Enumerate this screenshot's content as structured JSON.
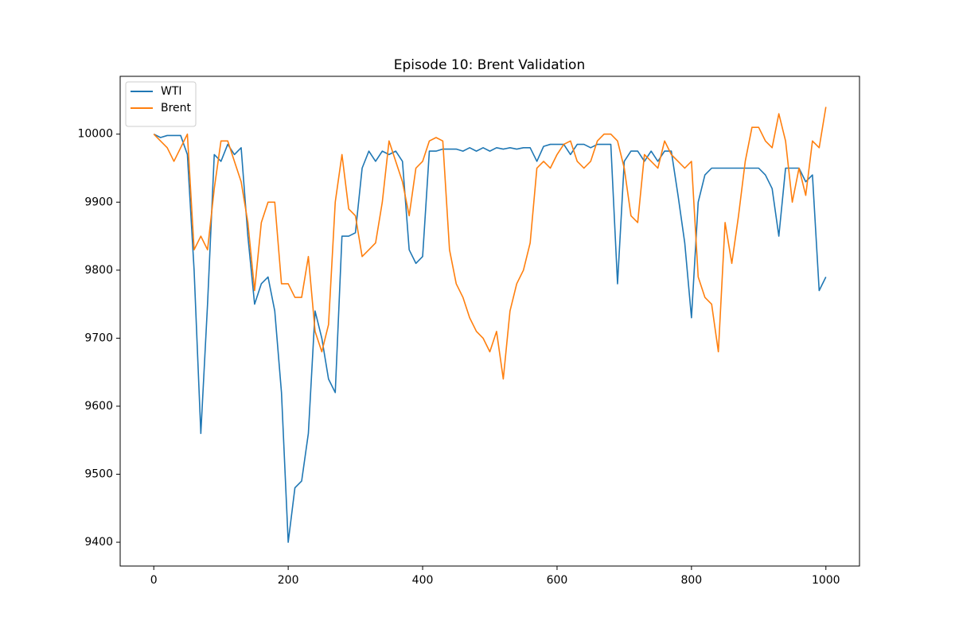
{
  "chart_data": {
    "type": "line",
    "title": "Episode 10: Brent Validation",
    "x": [
      0,
      10,
      20,
      30,
      40,
      50,
      60,
      70,
      80,
      90,
      100,
      110,
      120,
      130,
      140,
      150,
      160,
      170,
      180,
      190,
      200,
      210,
      220,
      230,
      240,
      250,
      260,
      270,
      280,
      290,
      300,
      310,
      320,
      330,
      340,
      350,
      360,
      370,
      380,
      390,
      400,
      410,
      420,
      430,
      440,
      450,
      460,
      470,
      480,
      490,
      500,
      510,
      520,
      530,
      540,
      550,
      560,
      570,
      580,
      590,
      600,
      610,
      620,
      630,
      640,
      650,
      660,
      670,
      680,
      690,
      700,
      710,
      720,
      730,
      740,
      750,
      760,
      770,
      780,
      790,
      800,
      810,
      820,
      830,
      840,
      850,
      860,
      870,
      880,
      890,
      900,
      910,
      920,
      930,
      940,
      950,
      960,
      970,
      980,
      990,
      1000
    ],
    "series": [
      {
        "name": "WTI",
        "color": "#1f77b4",
        "values": [
          10000,
          9995,
          9998,
          9998,
          9998,
          9970,
          9800,
          9560,
          9750,
          9970,
          9960,
          9985,
          9970,
          9980,
          9850,
          9750,
          9780,
          9790,
          9740,
          9620,
          9400,
          9480,
          9490,
          9560,
          9740,
          9700,
          9640,
          9620,
          9850,
          9850,
          9855,
          9950,
          9975,
          9960,
          9975,
          9970,
          9975,
          9960,
          9830,
          9810,
          9820,
          9975,
          9975,
          9978,
          9978,
          9978,
          9975,
          9980,
          9975,
          9980,
          9975,
          9980,
          9978,
          9980,
          9978,
          9980,
          9980,
          9960,
          9982,
          9985,
          9985,
          9985,
          9970,
          9985,
          9985,
          9980,
          9985,
          9985,
          9985,
          9780,
          9960,
          9975,
          9975,
          9960,
          9975,
          9960,
          9975,
          9975,
          9910,
          9840,
          9730,
          9900,
          9940,
          9950,
          9950,
          9950,
          9950,
          9950,
          9950,
          9950,
          9950,
          9940,
          9920,
          9850,
          9950,
          9950,
          9950,
          9930,
          9940,
          9770,
          9790
        ]
      },
      {
        "name": "Brent",
        "color": "#ff7f0e",
        "values": [
          10000,
          9990,
          9980,
          9960,
          9980,
          10000,
          9830,
          9850,
          9830,
          9920,
          9990,
          9990,
          9960,
          9930,
          9870,
          9770,
          9870,
          9900,
          9900,
          9780,
          9780,
          9760,
          9760,
          9820,
          9710,
          9680,
          9720,
          9900,
          9970,
          9890,
          9880,
          9820,
          9830,
          9840,
          9900,
          9990,
          9960,
          9930,
          9880,
          9950,
          9960,
          9990,
          9995,
          9990,
          9830,
          9780,
          9760,
          9730,
          9710,
          9700,
          9680,
          9710,
          9640,
          9740,
          9780,
          9800,
          9840,
          9950,
          9960,
          9950,
          9970,
          9985,
          9990,
          9960,
          9950,
          9960,
          9990,
          10000,
          10000,
          9990,
          9950,
          9880,
          9870,
          9970,
          9960,
          9950,
          9990,
          9970,
          9960,
          9950,
          9960,
          9790,
          9760,
          9750,
          9680,
          9870,
          9810,
          9880,
          9960,
          10010,
          10010,
          9990,
          9980,
          10030,
          9990,
          9900,
          9950,
          9910,
          9990,
          9980,
          10040
        ]
      }
    ],
    "xlim": [
      -50,
      1050
    ],
    "xticks": [
      0,
      200,
      400,
      600,
      800,
      1000
    ],
    "ylim": [
      9365,
      10085
    ],
    "yticks": [
      9400,
      9500,
      9600,
      9700,
      9800,
      9900,
      10000
    ],
    "grid": false,
    "legend": "upper left"
  }
}
